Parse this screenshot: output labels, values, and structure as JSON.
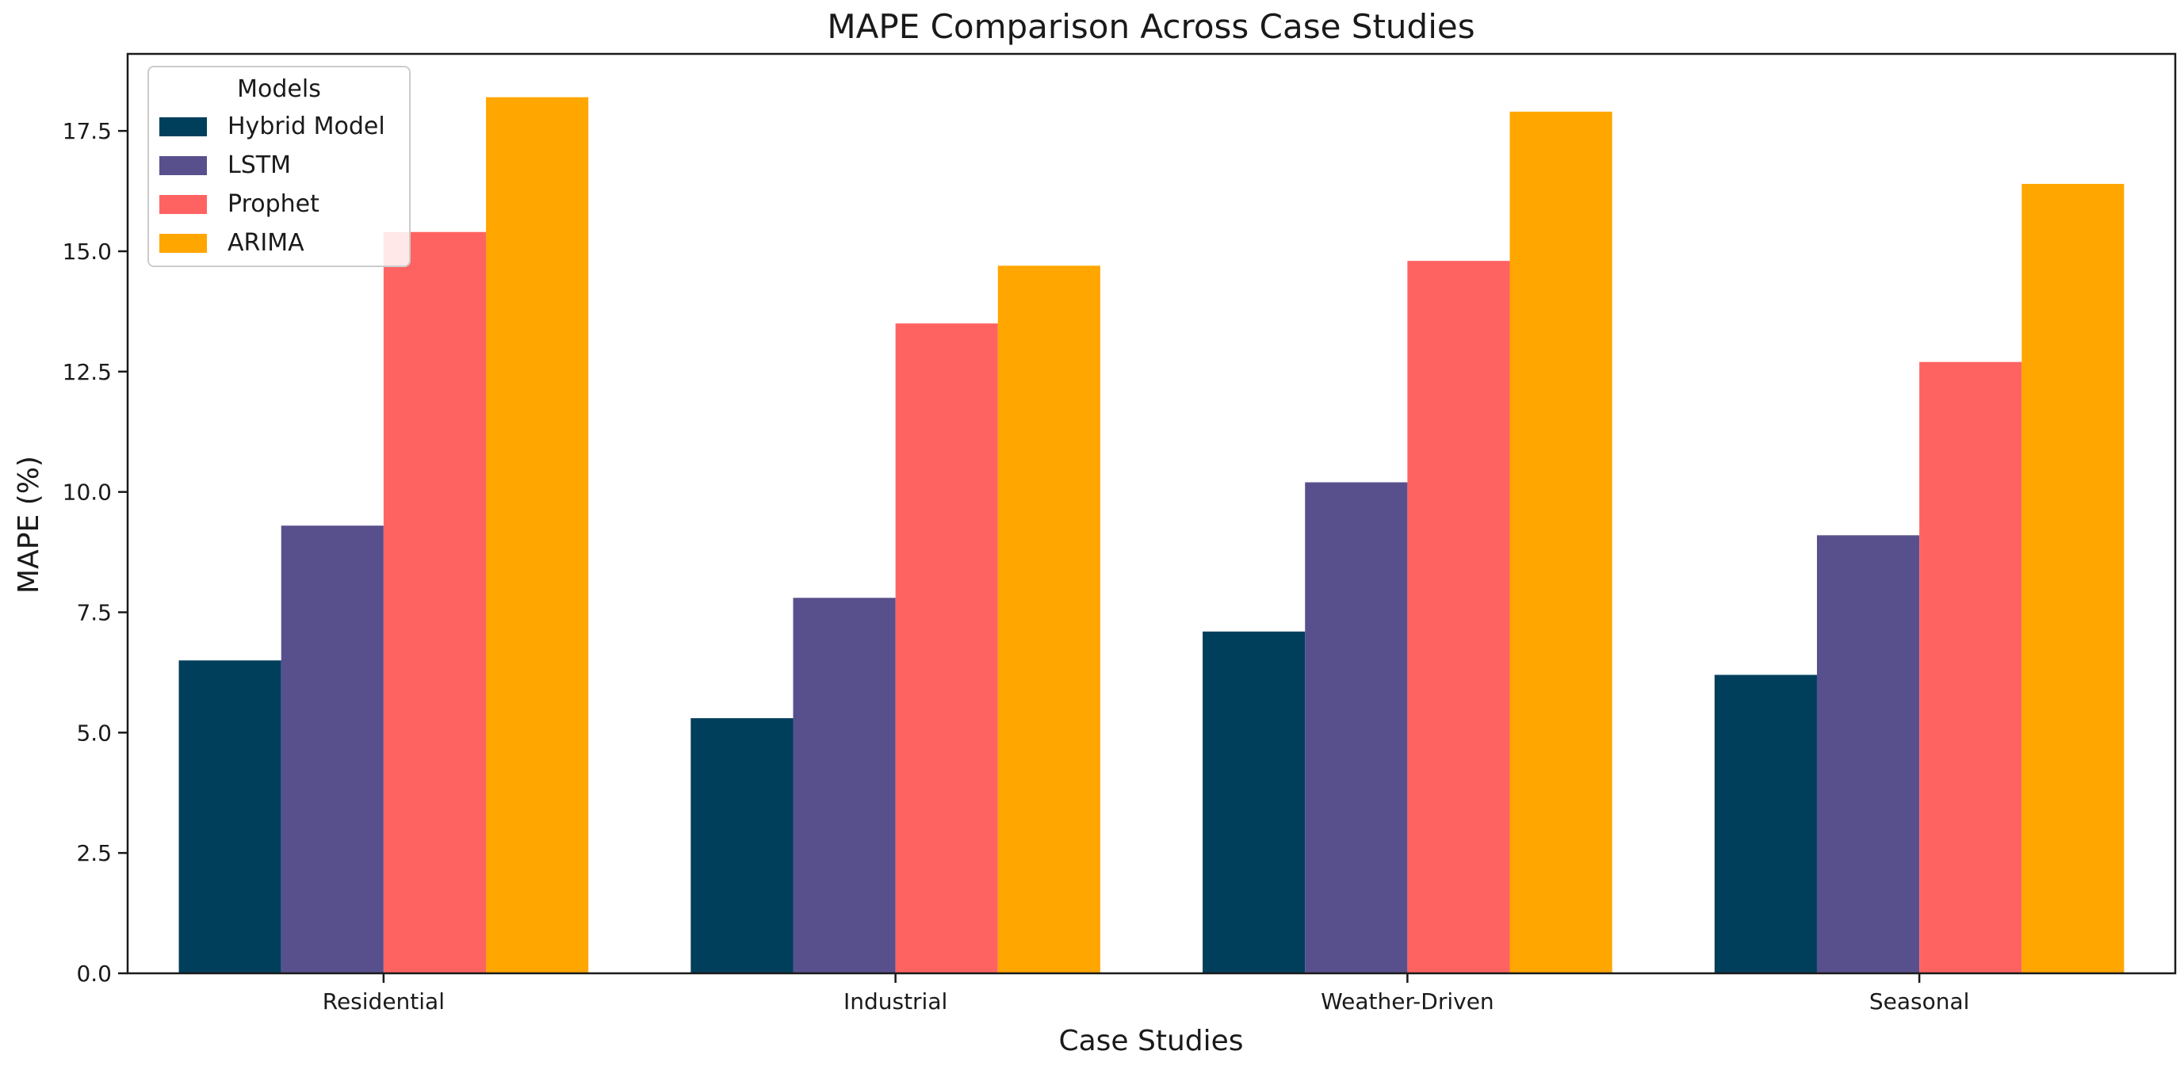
{
  "chart_data": {
    "type": "bar",
    "title": "MAPE Comparison Across Case Studies",
    "xlabel": "Case Studies",
    "ylabel": "MAPE (%)",
    "ylim": [
      0,
      19.1
    ],
    "yticks": [
      0.0,
      2.5,
      5.0,
      7.5,
      10.0,
      12.5,
      15.0,
      17.5
    ],
    "ytick_labels": [
      "0.0",
      "2.5",
      "5.0",
      "7.5",
      "10.0",
      "12.5",
      "15.0",
      "17.5"
    ],
    "categories": [
      "Residential",
      "Industrial",
      "Weather-Driven",
      "Seasonal"
    ],
    "series": [
      {
        "name": "Hybrid Model",
        "color": "#003f5c",
        "values": [
          6.5,
          5.3,
          7.1,
          6.2
        ]
      },
      {
        "name": "LSTM",
        "color": "#58508d",
        "values": [
          9.3,
          7.8,
          10.2,
          9.1
        ]
      },
      {
        "name": "Prophet",
        "color": "#ff6361",
        "values": [
          15.4,
          13.5,
          14.8,
          12.7
        ]
      },
      {
        "name": "ARIMA",
        "color": "#ffa600",
        "values": [
          18.2,
          14.7,
          17.9,
          16.4
        ]
      }
    ],
    "legend": {
      "title": "Models",
      "position": "top-left"
    },
    "grid": false
  }
}
